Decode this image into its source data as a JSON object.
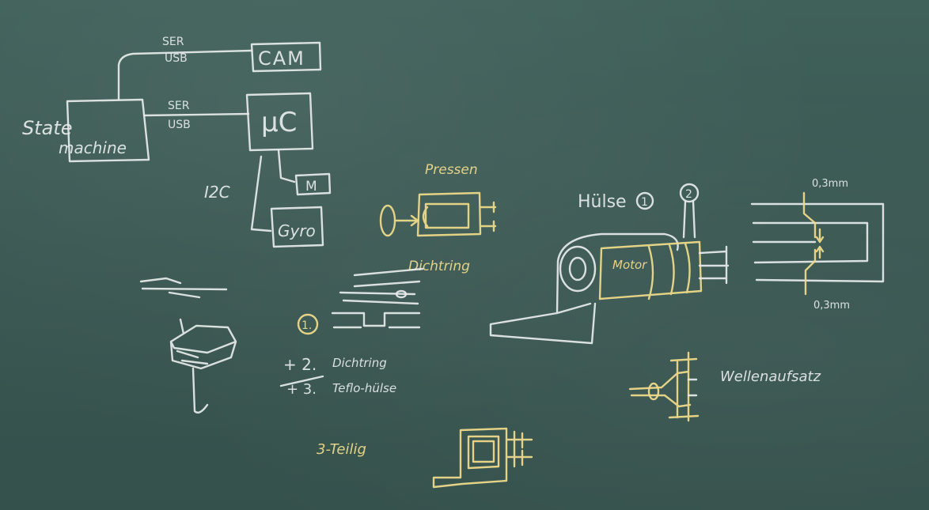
{
  "labels": {
    "ser_top": "SER",
    "usb_top": "USB",
    "cam": "CAM",
    "state_machine_line1": "State",
    "state_machine_line2": "machine",
    "ser_mid": "SER",
    "usb_mid": "USB",
    "mc": "µC",
    "i2c": "I2C",
    "m": "M",
    "gyro": "Gyro",
    "pressen": "Pressen",
    "dichtring": "Dichtring",
    "step1": "1.",
    "plus2": "+ 2.",
    "plus2_text": "Dichtring",
    "plus3": "+ 3.",
    "plus3_text": "Teflo-hülse",
    "dreiteilig": "3-Teilig",
    "huelse": "Hülse",
    "circle1": "1",
    "circle2": "2",
    "motor": "Motor",
    "dim_top": "0,3mm",
    "dim_bottom": "0,3mm",
    "wellenaufsatz": "Wellenaufsatz"
  },
  "colors": {
    "board": "#3b5852",
    "chalk_white": "#e7ecea",
    "chalk_yellow": "#ecd98a"
  }
}
